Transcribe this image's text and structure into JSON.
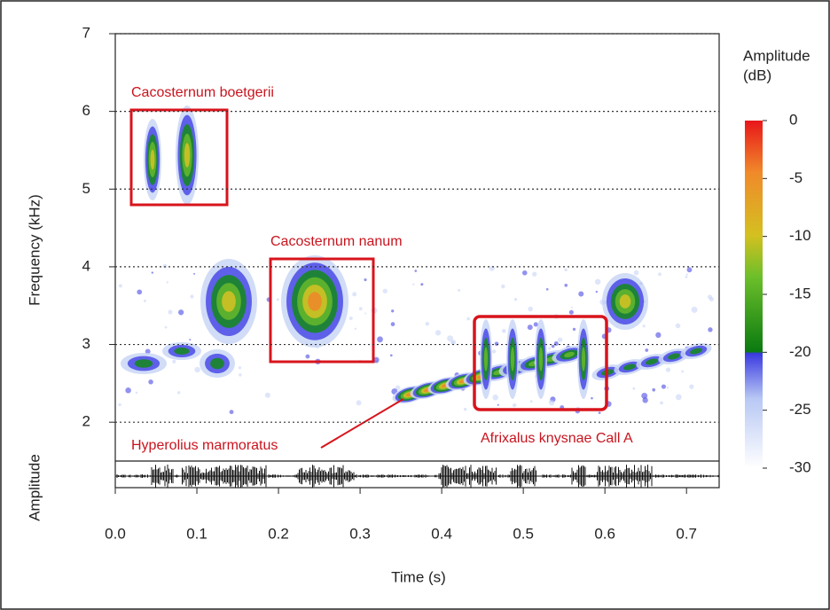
{
  "chart_data": {
    "type": "spectrogram",
    "xlabel": "Time (s)",
    "ylabel": "Frequency (kHz)",
    "amplitude_label": "Amplitude",
    "xlim": [
      0,
      0.74
    ],
    "xticks": [
      {
        "value": 0,
        "label": "0.0"
      },
      0.1,
      0.2,
      0.3,
      0.4,
      0.5,
      0.6,
      0.7
    ],
    "ylim": [
      1.5,
      7
    ],
    "yticks": [
      2,
      3,
      4,
      5,
      6,
      7
    ],
    "grid": true,
    "colorbar": {
      "title": [
        "Amplitude",
        "(dB)"
      ],
      "lim": [
        -30,
        0
      ],
      "ticks": [
        0,
        -5,
        -10,
        -15,
        -20,
        -25,
        -30
      ]
    },
    "annotations": [
      "Cacosternum boetgerii",
      "Cacosternum nanum",
      "Hyperolius marmoratus",
      "Afrixalus knysnae Call A"
    ]
  }
}
